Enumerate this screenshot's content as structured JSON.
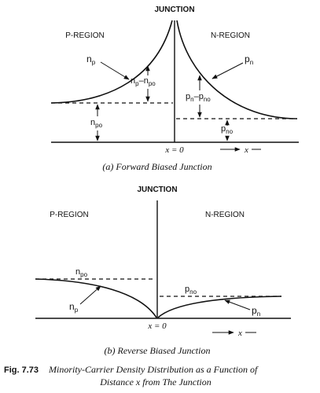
{
  "panel_a": {
    "junction_label": "JUNCTION",
    "p_region_label": "P-REGION",
    "n_region_label": "N-REGION",
    "np": {
      "base": "n",
      "sub": "p"
    },
    "np_minus_npo": {
      "a": "n",
      "a_sub": "p",
      "b": "–n",
      "b_sub": "po"
    },
    "npo": {
      "base": "n",
      "sub": "po"
    },
    "pn": {
      "base": "p",
      "sub": "n"
    },
    "pn_minus_pno": {
      "a": "p",
      "a_sub": "n",
      "b": "–p",
      "b_sub": "no"
    },
    "pno": {
      "base": "p",
      "sub": "no"
    },
    "x_zero": "x = 0",
    "x_axis": "x",
    "caption": "(a) Forward Biased Junction"
  },
  "panel_b": {
    "junction_label": "JUNCTION",
    "p_region_label": "P-REGION",
    "n_region_label": "N-REGION",
    "npo": {
      "base": "n",
      "sub": "po"
    },
    "pno": {
      "base": "p",
      "sub": "no"
    },
    "np": {
      "base": "n",
      "sub": "p"
    },
    "pn": {
      "base": "p",
      "sub": "n"
    },
    "x_zero": "x = 0",
    "x_axis": "x",
    "caption": "(b) Reverse Biased Junction"
  },
  "figure": {
    "number": "Fig. 7.73",
    "caption_line1": "Minority-Carrier Density Distribution as a Function of",
    "caption_line2": "Distance x from The Junction"
  }
}
